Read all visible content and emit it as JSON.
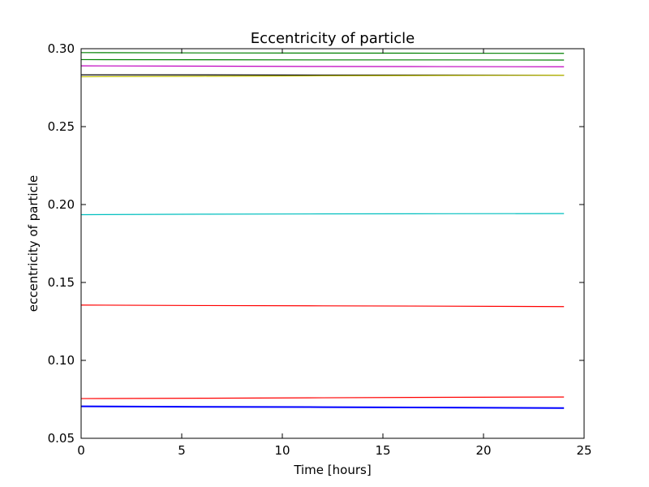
{
  "chart_data": {
    "type": "line",
    "title": "Eccentricity of particle",
    "xlabel": "Time [hours]",
    "ylabel": "eccentricity of particle",
    "xlim": [
      0,
      25
    ],
    "ylim": [
      0.05,
      0.3
    ],
    "xticks": [
      0,
      5,
      10,
      15,
      20,
      25
    ],
    "yticks": [
      0.05,
      0.1,
      0.15,
      0.2,
      0.25,
      0.3
    ],
    "xtick_labels": [
      "0",
      "5",
      "10",
      "15",
      "20",
      "25"
    ],
    "ytick_labels": [
      "0.05",
      "0.10",
      "0.15",
      "0.20",
      "0.25",
      "0.30"
    ],
    "grid": false,
    "series": [
      {
        "color": "#000000",
        "x": [
          0,
          6,
          12,
          18,
          24
        ],
        "y": [
          0.2832,
          0.2832,
          0.2831,
          0.2831,
          0.283
        ]
      },
      {
        "color": "#bfbf00",
        "x": [
          0,
          6,
          12,
          18,
          24
        ],
        "y": [
          0.282,
          0.2823,
          0.2826,
          0.2828,
          0.283
        ]
      },
      {
        "color": "#bf00bf",
        "x": [
          0,
          6,
          12,
          18,
          24
        ],
        "y": [
          0.289,
          0.2888,
          0.2886,
          0.2885,
          0.2884
        ]
      },
      {
        "color": "#008000",
        "x": [
          0,
          6,
          12,
          18,
          24
        ],
        "y": [
          0.293,
          0.2929,
          0.2928,
          0.2928,
          0.2927
        ]
      },
      {
        "color": "#008000",
        "x": [
          0,
          6,
          12,
          18,
          24
        ],
        "y": [
          0.2975,
          0.2973,
          0.2972,
          0.2971,
          0.297
        ]
      },
      {
        "color": "#00bfbf",
        "x": [
          0,
          6,
          12,
          18,
          24
        ],
        "y": [
          0.1935,
          0.1938,
          0.194,
          0.1941,
          0.1942
        ]
      },
      {
        "color": "#ff0000",
        "x": [
          0,
          6,
          12,
          18,
          24
        ],
        "y": [
          0.1355,
          0.1352,
          0.135,
          0.1348,
          0.1345
        ]
      },
      {
        "color": "#ff0000",
        "x": [
          0,
          6,
          12,
          18,
          24
        ],
        "y": [
          0.0755,
          0.0757,
          0.076,
          0.0763,
          0.0765
        ]
      },
      {
        "color": "#0000ff",
        "x": [
          0,
          6,
          12,
          18,
          24
        ],
        "y": [
          0.0705,
          0.0702,
          0.07,
          0.0697,
          0.0694
        ]
      }
    ]
  }
}
